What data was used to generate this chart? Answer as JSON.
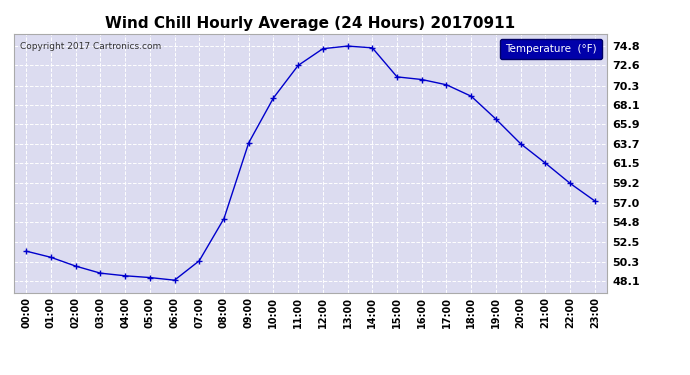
{
  "title": "Wind Chill Hourly Average (24 Hours) 20170911",
  "copyright": "Copyright 2017 Cartronics.com",
  "legend_label": "Temperature  (°F)",
  "hours": [
    "00:00",
    "01:00",
    "02:00",
    "03:00",
    "04:00",
    "05:00",
    "06:00",
    "07:00",
    "08:00",
    "09:00",
    "10:00",
    "11:00",
    "12:00",
    "13:00",
    "14:00",
    "15:00",
    "16:00",
    "17:00",
    "18:00",
    "19:00",
    "20:00",
    "21:00",
    "22:00",
    "23:00"
  ],
  "values": [
    51.5,
    50.8,
    49.8,
    49.0,
    48.7,
    48.5,
    48.2,
    50.4,
    55.2,
    63.8,
    68.9,
    72.6,
    74.5,
    74.8,
    74.6,
    71.3,
    71.0,
    70.4,
    69.1,
    66.5,
    63.7,
    61.5,
    59.2,
    57.2
  ],
  "ylim_min": 46.8,
  "ylim_max": 76.2,
  "yticks": [
    48.1,
    50.3,
    52.5,
    54.8,
    57.0,
    59.2,
    61.5,
    63.7,
    65.9,
    68.1,
    70.3,
    72.6,
    74.8
  ],
  "line_color": "#0000cc",
  "marker": "+",
  "marker_size": 4,
  "bg_color": "#ffffff",
  "plot_bg_color": "#dcdcf0",
  "grid_color": "#ffffff",
  "title_fontsize": 11,
  "legend_bg": "#0000aa",
  "legend_fg": "#ffffff"
}
